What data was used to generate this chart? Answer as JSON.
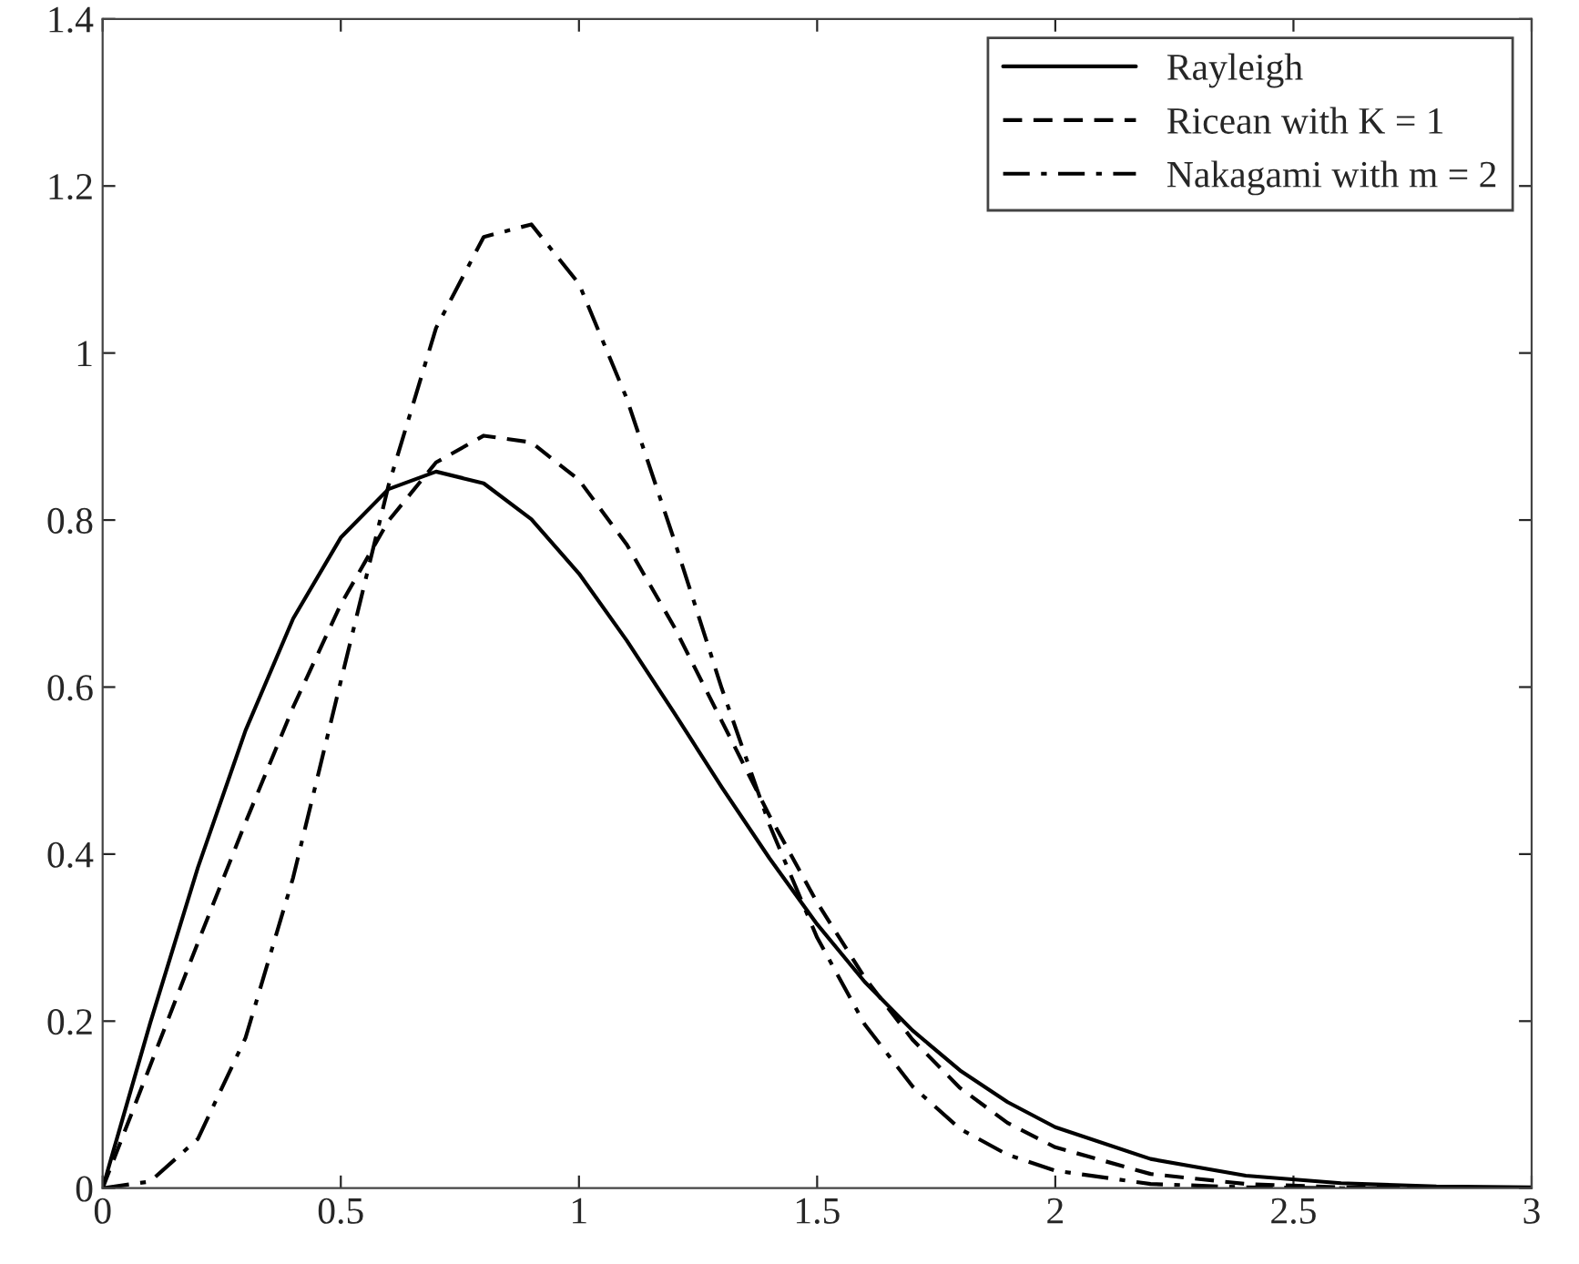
{
  "chart_data": {
    "type": "line",
    "x": [
      0,
      0.1,
      0.2,
      0.3,
      0.4,
      0.5,
      0.6,
      0.7,
      0.8,
      0.9,
      1.0,
      1.1,
      1.2,
      1.3,
      1.4,
      1.5,
      1.6,
      1.7,
      1.8,
      1.9,
      2.0,
      2.2,
      2.4,
      2.6,
      2.8,
      3.0
    ],
    "series": [
      {
        "name": "Rayleigh",
        "color": "#000000",
        "line_style": "solid",
        "values": [
          0,
          0.198,
          0.384,
          0.548,
          0.682,
          0.779,
          0.837,
          0.858,
          0.844,
          0.801,
          0.736,
          0.656,
          0.569,
          0.48,
          0.395,
          0.316,
          0.247,
          0.189,
          0.141,
          0.103,
          0.073,
          0.035,
          0.015,
          0.006,
          0.002,
          0.001
        ]
      },
      {
        "name": "Ricean with K = 1",
        "color": "#000000",
        "line_style": "dashed",
        "values": [
          0,
          0.147,
          0.294,
          0.438,
          0.576,
          0.699,
          0.799,
          0.869,
          0.901,
          0.893,
          0.848,
          0.771,
          0.672,
          0.559,
          0.446,
          0.342,
          0.252,
          0.178,
          0.12,
          0.078,
          0.049,
          0.017,
          0.005,
          0.001,
          0,
          0
        ]
      },
      {
        "name": "Nakagami with m = 2",
        "color": "#000000",
        "line_style": "dashdot",
        "values": [
          0,
          0.008,
          0.059,
          0.18,
          0.372,
          0.607,
          0.841,
          1.03,
          1.139,
          1.154,
          1.083,
          0.946,
          0.776,
          0.598,
          0.435,
          0.3,
          0.196,
          0.122,
          0.071,
          0.04,
          0.021,
          0.005,
          0.001,
          0,
          0,
          0
        ]
      }
    ],
    "xlim": [
      0,
      3
    ],
    "ylim": [
      0,
      1.4
    ],
    "xticks": [
      0,
      0.5,
      1,
      1.5,
      2,
      2.5,
      3
    ],
    "yticks": [
      0,
      0.2,
      0.4,
      0.6,
      0.8,
      1,
      1.2,
      1.4
    ],
    "grid": false,
    "legend": "top right"
  }
}
